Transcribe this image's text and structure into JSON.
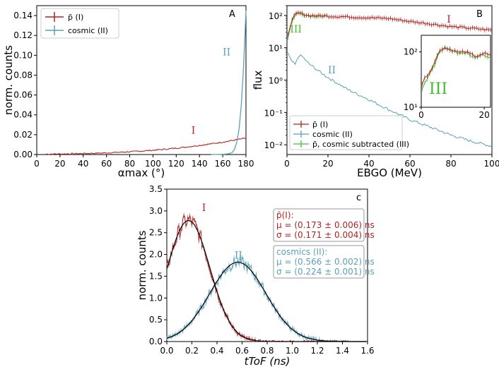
{
  "colors": {
    "pbar": "#b22222",
    "cosmic": "#5aa0b8",
    "subtracted": "#40c030",
    "fit": "#000000"
  },
  "chart_data": [
    {
      "panel": "A",
      "type": "line",
      "xlabel": "αmax (°)",
      "ylabel": "norm. counts",
      "xlim": [
        0,
        180
      ],
      "ylim": [
        0,
        0.15
      ],
      "xticks": [
        "0",
        "20",
        "40",
        "60",
        "80",
        "100",
        "120",
        "140",
        "160",
        "180"
      ],
      "yticks": [
        "0.00",
        "0.02",
        "0.04",
        "0.06",
        "0.08",
        "0.10",
        "0.12",
        "0.14"
      ],
      "legend": [
        "p̄ (I)",
        "cosmic (II)"
      ],
      "legend_position": "top-left",
      "annotations": [
        "I",
        "II"
      ],
      "series": [
        {
          "name": "p̄ (I)",
          "x": [
            10,
            20,
            30,
            40,
            50,
            60,
            70,
            80,
            90,
            100,
            110,
            120,
            130,
            140,
            150,
            160,
            170,
            180
          ],
          "values": [
            0.0005,
            0.0006,
            0.0008,
            0.001,
            0.0013,
            0.0017,
            0.0022,
            0.0028,
            0.0035,
            0.0043,
            0.0053,
            0.0065,
            0.0078,
            0.0092,
            0.0108,
            0.0125,
            0.0145,
            0.0165
          ]
        },
        {
          "name": "cosmic (II)",
          "x": [
            150,
            160,
            165,
            168,
            170,
            172,
            174,
            176,
            178,
            180
          ],
          "values": [
            0.0,
            0.0002,
            0.0008,
            0.002,
            0.005,
            0.012,
            0.025,
            0.05,
            0.09,
            0.145
          ]
        }
      ]
    },
    {
      "panel": "B",
      "type": "line",
      "xlabel": "EBGO (MeV)",
      "ylabel": "flux",
      "xlim": [
        0,
        100
      ],
      "yscale": "log",
      "ylim": [
        0.005,
        200
      ],
      "xticks": [
        "0",
        "20",
        "40",
        "60",
        "80",
        "100"
      ],
      "yticks": [
        "10⁻²",
        "10⁻¹",
        "10⁰",
        "10¹",
        "10²"
      ],
      "legend": [
        "p̄ (I)",
        "cosmic (II)",
        "p̄, cosmic subtracted (III)"
      ],
      "legend_position": "bottom-right",
      "annotations": [
        "I",
        "II",
        "III"
      ],
      "series": [
        {
          "name": "p̄ (I)",
          "x": [
            0,
            2,
            4,
            6,
            10,
            20,
            30,
            40,
            50,
            60,
            70,
            80,
            90,
            100
          ],
          "values": [
            20,
            60,
            110,
            120,
            100,
            95,
            90,
            85,
            80,
            65,
            55,
            45,
            40,
            35
          ]
        },
        {
          "name": "cosmic (II)",
          "x": [
            0,
            2,
            4,
            6,
            8,
            10,
            15,
            20,
            30,
            40,
            50,
            60,
            70,
            80,
            90,
            100
          ],
          "values": [
            8,
            4,
            3,
            6,
            5,
            3.5,
            2,
            1.2,
            0.5,
            0.25,
            0.12,
            0.06,
            0.035,
            0.02,
            0.013,
            0.009
          ]
        },
        {
          "name": "p̄, cosmic subtracted (III)",
          "x": [
            0,
            2,
            4,
            6,
            10,
            20,
            30,
            40,
            50,
            60,
            70,
            80,
            90,
            100
          ],
          "values": [
            15,
            55,
            105,
            118,
            98,
            93,
            88,
            83,
            78,
            63,
            54,
            44,
            39,
            34
          ]
        }
      ],
      "inset": {
        "xlim": [
          0,
          22
        ],
        "ylim": [
          10,
          200
        ],
        "xticks": [
          "0",
          "20"
        ],
        "yticks": [
          "10¹",
          "10²"
        ],
        "label": "III",
        "series": [
          {
            "name": "p̄ (I)",
            "x": [
              0,
              2,
              4,
              6,
              8,
              10,
              12,
              14,
              16,
              18,
              20,
              22
            ],
            "values": [
              25,
              40,
              60,
              115,
              120,
              110,
              95,
              100,
              90,
              85,
              95,
              85
            ]
          },
          {
            "name": "p̄, cosmic subtracted (III)",
            "x": [
              0,
              2,
              4,
              6,
              8,
              10,
              12,
              14,
              16,
              18,
              20,
              22
            ],
            "values": [
              20,
              35,
              55,
              110,
              115,
              105,
              92,
              96,
              88,
              82,
              92,
              82
            ]
          }
        ]
      }
    },
    {
      "panel": "C",
      "type": "line",
      "xlabel": "tToF (ns)",
      "ylabel": "norm. counts",
      "xlim": [
        0,
        1.6
      ],
      "ylim": [
        0,
        3.5
      ],
      "xticks": [
        "0.0",
        "0.2",
        "0.4",
        "0.6",
        "0.8",
        "1.0",
        "1.2",
        "1.4",
        "1.6"
      ],
      "yticks": [
        "0.0",
        "0.5",
        "1.0",
        "1.5",
        "2.0",
        "2.5",
        "3.0",
        "3.5"
      ],
      "annotations": [
        "I",
        "II"
      ],
      "fits": [
        {
          "name": "p̄(I)",
          "mu": 0.173,
          "sigma": 0.171,
          "amp": 2.78
        },
        {
          "name": "cosmics (II)",
          "mu": 0.566,
          "sigma": 0.224,
          "amp": 1.82
        }
      ],
      "fit_boxes": [
        {
          "title": "p̄(I):",
          "mu_text": "μ = (0.173 ± 0.006) ns",
          "sigma_text": "σ = (0.171 ± 0.004) ns"
        },
        {
          "title": "cosmics (II):",
          "mu_text": "μ = (0.566 ± 0.002) ns",
          "sigma_text": "σ = (0.224 ± 0.001) ns"
        }
      ]
    }
  ]
}
